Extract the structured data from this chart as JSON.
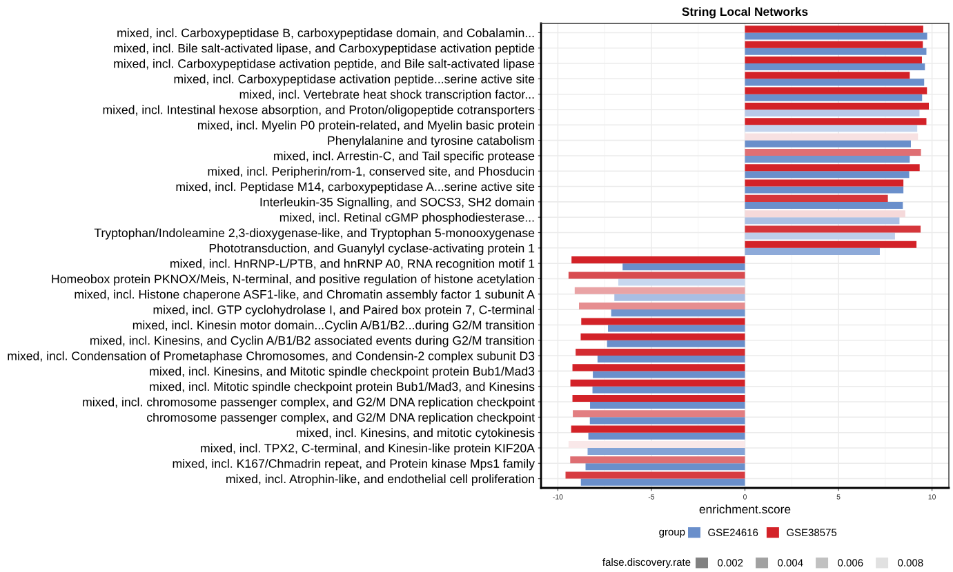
{
  "chart_data": {
    "type": "bar",
    "orientation": "horizontal",
    "title": "String Local Networks",
    "xlabel": "enrichment.score",
    "categories": [
      "mixed, incl. Carboxypeptidase B, carboxypeptidase domain, and Cobalamin...",
      "mixed, incl. Bile salt-activated lipase, and Carboxypeptidase activation peptide",
      "mixed, incl. Carboxypeptidase activation peptide, and Bile salt-activated lipase",
      "mixed, incl. Carboxypeptidase activation peptide...serine active site",
      "mixed, incl. Vertebrate heat shock transcription factor...",
      "mixed, incl. Intestinal hexose absorption, and Proton/oligopeptide cotransporters",
      "mixed, incl. Myelin P0 protein-related, and Myelin basic protein",
      "Phenylalanine and tyrosine catabolism",
      "mixed, incl. Arrestin-C, and Tail specific protease",
      "mixed, incl. Peripherin/rom-1, conserved site, and Phosducin",
      "mixed, incl. Peptidase M14, carboxypeptidase A...serine active site",
      "Interleukin-35 Signalling, and SOCS3, SH2 domain",
      "mixed, incl. Retinal cGMP phosphodiesterase...",
      "Tryptophan/Indoleamine 2,3-dioxygenase-like, and Tryptophan 5-monooxygenase",
      "Phototransduction, and Guanylyl cyclase-activating protein 1",
      "mixed, incl. HnRNP-L/PTB, and hnRNP A0, RNA recognition motif 1",
      "Homeobox protein PKNOX/Meis, N-terminal, and positive regulation of histone acetylation",
      "mixed, incl. Histone chaperone ASF1-like, and Chromatin assembly factor 1 subunit A",
      "mixed, incl. GTP cyclohydrolase I, and Paired box protein 7, C-terminal",
      "mixed, incl. Kinesin motor domain...Cyclin A/B1/B2...during G2/M transition",
      "mixed, incl. Kinesins, and Cyclin A/B1/B2 associated events during G2/M transition",
      "mixed, incl. Condensation of Prometaphase Chromosomes, and Condensin-2 complex subunit D3",
      "mixed, incl. Kinesins, and Mitotic spindle checkpoint protein Bub1/Mad3",
      "mixed, incl. Mitotic spindle checkpoint protein Bub1/Mad3, and Kinesins",
      "mixed, incl. chromosome passenger complex, and G2/M DNA replication checkpoint",
      "chromosome passenger complex, and G2/M DNA replication checkpoint",
      "mixed, incl. Kinesins, and mitotic cytokinesis",
      "mixed, incl. TPX2, C-terminal, and Kinesin-like protein KIF20A",
      "mixed, incl. K167/Chmadrin repeat, and Protein kinase Mps1 family",
      "mixed, incl. Atrophin-like, and endothelial cell proliferation"
    ],
    "series": [
      {
        "name": "GSE24616",
        "color": "#6a8fcb",
        "values": [
          9.74,
          9.7,
          9.62,
          9.58,
          9.47,
          9.33,
          9.21,
          8.87,
          8.81,
          8.78,
          8.47,
          8.44,
          8.26,
          8.02,
          7.21,
          -6.54,
          -6.77,
          -6.98,
          -7.15,
          -7.32,
          -7.37,
          -7.88,
          -8.13,
          -8.15,
          -8.28,
          -8.29,
          -8.37,
          -8.41,
          -8.52,
          -8.77
        ],
        "colors": [
          "#6a8fcb",
          "#6a8fcb",
          "#6a8fcb",
          "#6a8fcb",
          "#6a8fcb",
          "#b8c9e8",
          "#c4d4ed",
          "#6a8fcb",
          "#7296ce",
          "#6a8fcb",
          "#6a8fcb",
          "#6a8fcb",
          "#abc0e4",
          "#bdceea",
          "#8eaad9",
          "#6a8fcb",
          "#c7d7ef",
          "#a9bee3",
          "#7095ce",
          "#6a8fcb",
          "#6a8fcb",
          "#6a8fcb",
          "#6a8fcb",
          "#6a8fcb",
          "#6a8fcb",
          "#6a8fcb",
          "#6a8fcb",
          "#83a3d6",
          "#6a8fcb",
          "#6a8fcb"
        ]
      },
      {
        "name": "GSE38575",
        "color": "#d32228",
        "values": [
          9.53,
          9.51,
          9.46,
          8.81,
          9.73,
          9.83,
          9.7,
          9.25,
          9.41,
          9.34,
          8.47,
          7.64,
          8.57,
          9.39,
          9.17,
          -9.27,
          -9.43,
          -9.1,
          -8.87,
          -8.75,
          -8.78,
          -9.05,
          -9.22,
          -9.33,
          -9.22,
          -9.2,
          -9.29,
          -9.43,
          -9.34,
          -9.59
        ],
        "colors": [
          "#d32228",
          "#d32228",
          "#d32228",
          "#d32228",
          "#d32228",
          "#d32228",
          "#d32228",
          "#f7e1e2",
          "#df6f73",
          "#d32228",
          "#d32228",
          "#d5363b",
          "#f5d9da",
          "#d5363b",
          "#d32228",
          "#d32228",
          "#d84c50",
          "#e9a3a5",
          "#e68e90",
          "#d32228",
          "#d32228",
          "#d42d32",
          "#d32228",
          "#d32228",
          "#d32228",
          "#e27e81",
          "#d32228",
          "#f9e8e9",
          "#de6e72",
          "#d73c41"
        ]
      }
    ],
    "xlim": [
      -10.9,
      10.9
    ],
    "xticks": [
      -10,
      -5,
      0,
      5,
      10
    ],
    "grid": true,
    "legend": "bottom",
    "legend_title": "group",
    "clabel": "false.discovery.rate",
    "annotations": [
      "0.002",
      "0.004",
      "0.006",
      "0.008"
    ]
  }
}
